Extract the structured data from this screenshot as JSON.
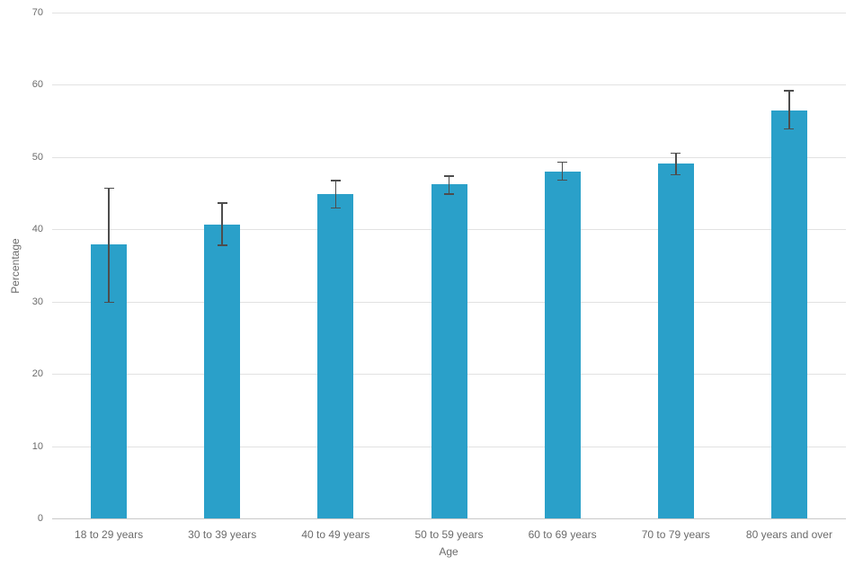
{
  "chart_data": {
    "type": "bar",
    "title": "",
    "xlabel": "Age",
    "ylabel": "Percentage",
    "categories": [
      "18 to 29 years",
      "30 to 39 years",
      "40 to 49 years",
      "50 to 59 years",
      "60 to 69 years",
      "70 to 79 years",
      "80 years and over"
    ],
    "values": [
      37.9,
      40.7,
      44.9,
      46.2,
      48.0,
      49.1,
      56.5
    ],
    "error_low": [
      30.1,
      38.0,
      43.2,
      45.1,
      47.0,
      47.8,
      54.1
    ],
    "error_high": [
      45.7,
      43.7,
      46.8,
      47.4,
      49.3,
      50.6,
      59.2
    ],
    "ylim": [
      0,
      70
    ],
    "yticks": [
      0,
      10,
      20,
      30,
      40,
      50,
      60,
      70
    ],
    "grid": true,
    "legend": "none",
    "colors": {
      "bar": "#2AA0C9",
      "error_bar": "#4D4D4D",
      "gridline": "#E2E2E2",
      "axis_line": "#C9C9C9",
      "text": "#6B6B6B",
      "background": "#FFFFFF"
    }
  }
}
